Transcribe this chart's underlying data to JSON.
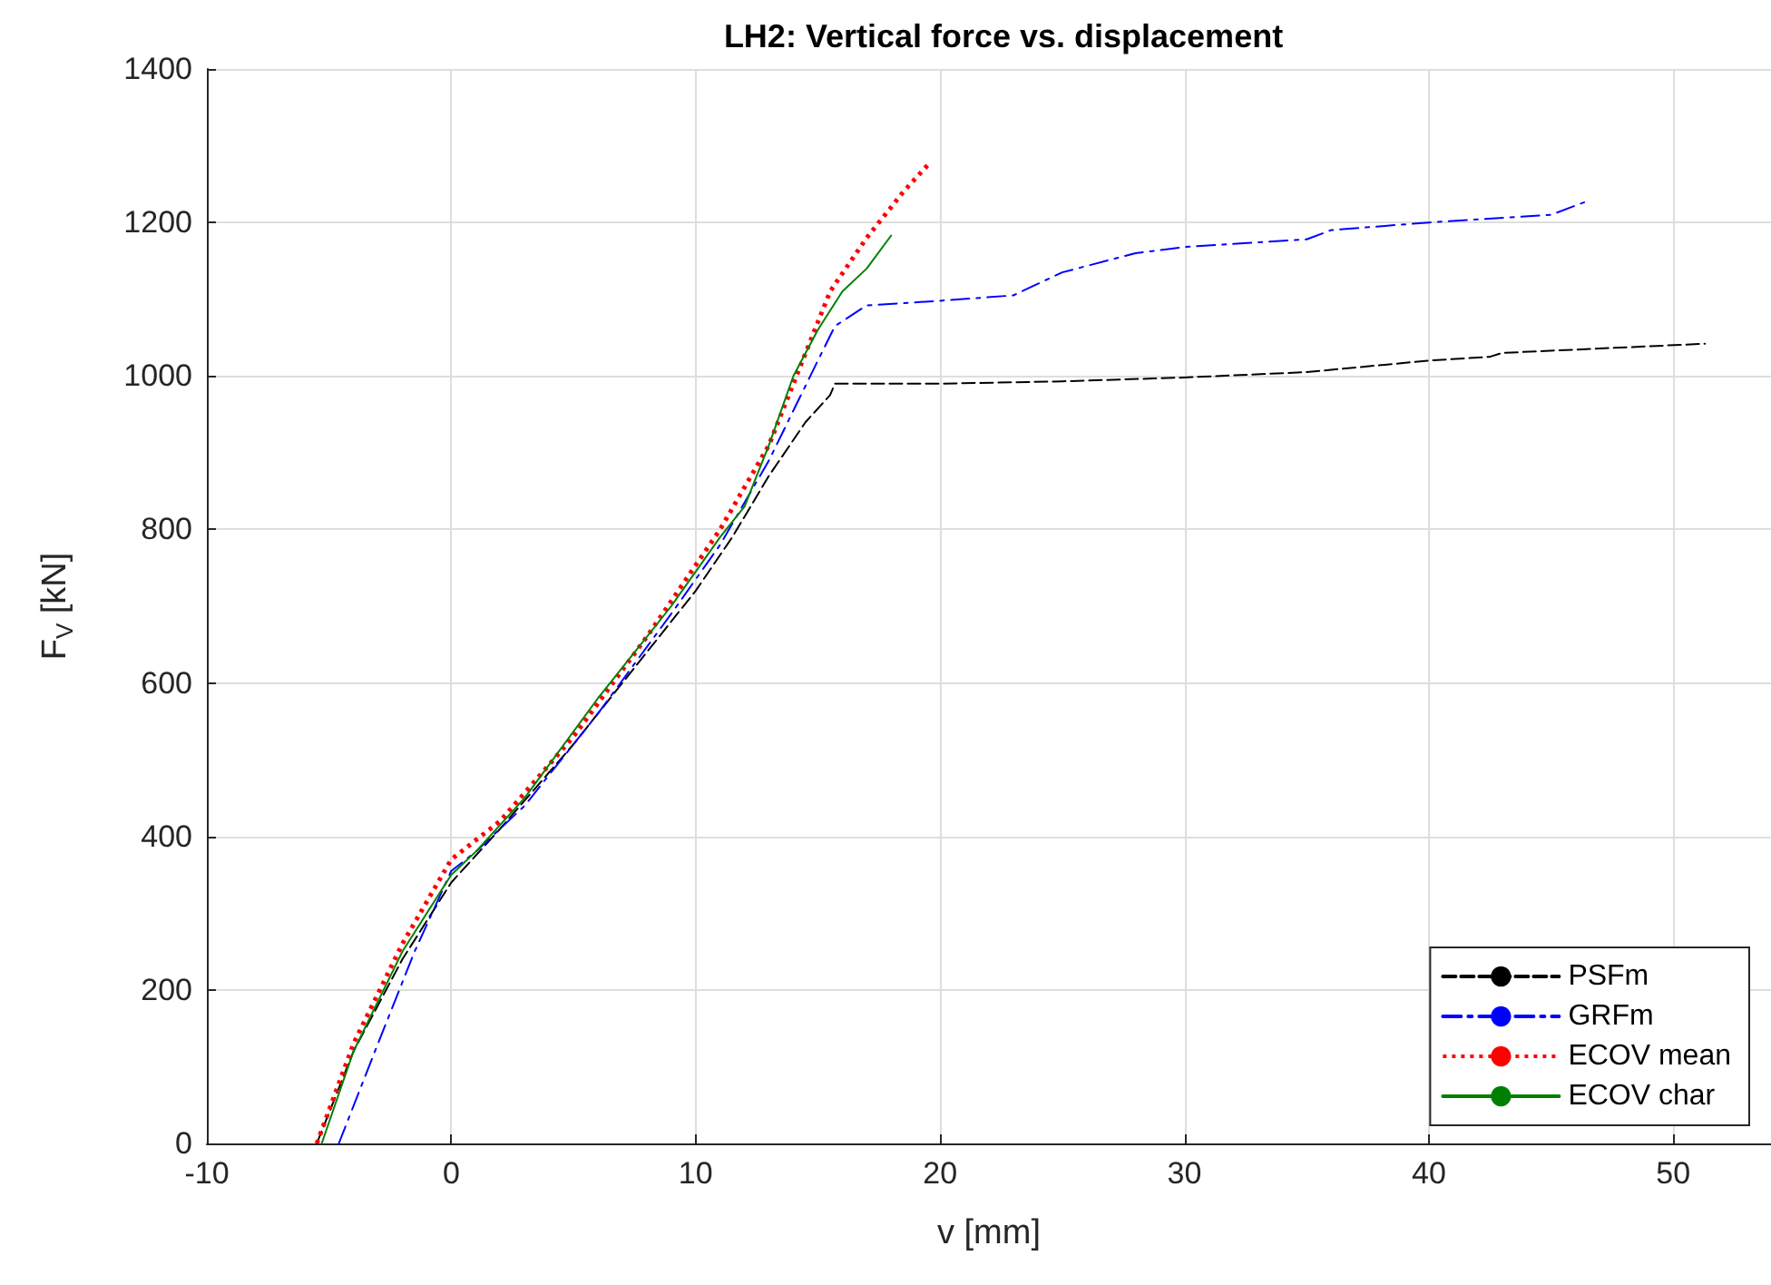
{
  "chart_data": {
    "type": "line",
    "title": "LH2: Vertical force vs. displacement",
    "xlabel": "v [mm]",
    "ylabel": "F$_{V}$ [kN]",
    "xlim": [
      -10,
      54
    ],
    "xticks": [
      -10,
      0,
      10,
      20,
      30,
      40,
      50
    ],
    "ylim": [
      0,
      1400
    ],
    "yticks": [
      0,
      200,
      400,
      600,
      800,
      1000,
      1200,
      1400
    ],
    "grid": true,
    "legend": "bottom right",
    "marker": "none",
    "series": [
      {
        "name": "PSFm",
        "color": "#000000",
        "line_style": "dashed",
        "x": [
          -5.5,
          -4,
          -2,
          0,
          2,
          5,
          8,
          10,
          11.5,
          13,
          14.5,
          15.5,
          15.7,
          20,
          25,
          30,
          35,
          40,
          42.5,
          43,
          51.3
        ],
        "values": [
          0,
          120,
          240,
          340,
          410,
          520,
          640,
          720,
          790,
          870,
          940,
          975,
          990,
          990,
          993,
          998,
          1005,
          1020,
          1025,
          1030,
          1042
        ]
      },
      {
        "name": "GRFm",
        "color": "#0000ff",
        "line_style": "dashdot",
        "x": [
          -4.6,
          -3,
          -1.5,
          0,
          1,
          3,
          6,
          9,
          11,
          13,
          15,
          15.7,
          17,
          20,
          23,
          25,
          28,
          30,
          35,
          36,
          40,
          45,
          46.5
        ],
        "values": [
          0,
          130,
          250,
          355,
          380,
          440,
          560,
          690,
          780,
          890,
          1020,
          1065,
          1092,
          1098,
          1105,
          1135,
          1160,
          1168,
          1178,
          1190,
          1200,
          1210,
          1228
        ]
      },
      {
        "name": "ECOV mean",
        "color": "#ff0000",
        "line_style": "dotted",
        "x": [
          -5.5,
          -4,
          -2,
          0,
          2,
          5,
          8,
          11,
          13,
          14,
          15.5,
          17,
          18.5,
          19.5
        ],
        "values": [
          0,
          130,
          260,
          370,
          420,
          530,
          660,
          800,
          910,
          990,
          1110,
          1180,
          1240,
          1275
        ]
      },
      {
        "name": "ECOV char",
        "color": "#008000",
        "line_style": "solid",
        "x": [
          -5.3,
          -4,
          -2,
          0,
          1,
          3,
          6,
          9,
          11,
          12,
          13,
          14,
          15,
          16,
          17,
          18
        ],
        "values": [
          0,
          120,
          250,
          350,
          380,
          450,
          580,
          700,
          790,
          830,
          910,
          1000,
          1060,
          1110,
          1140,
          1183
        ]
      }
    ]
  }
}
